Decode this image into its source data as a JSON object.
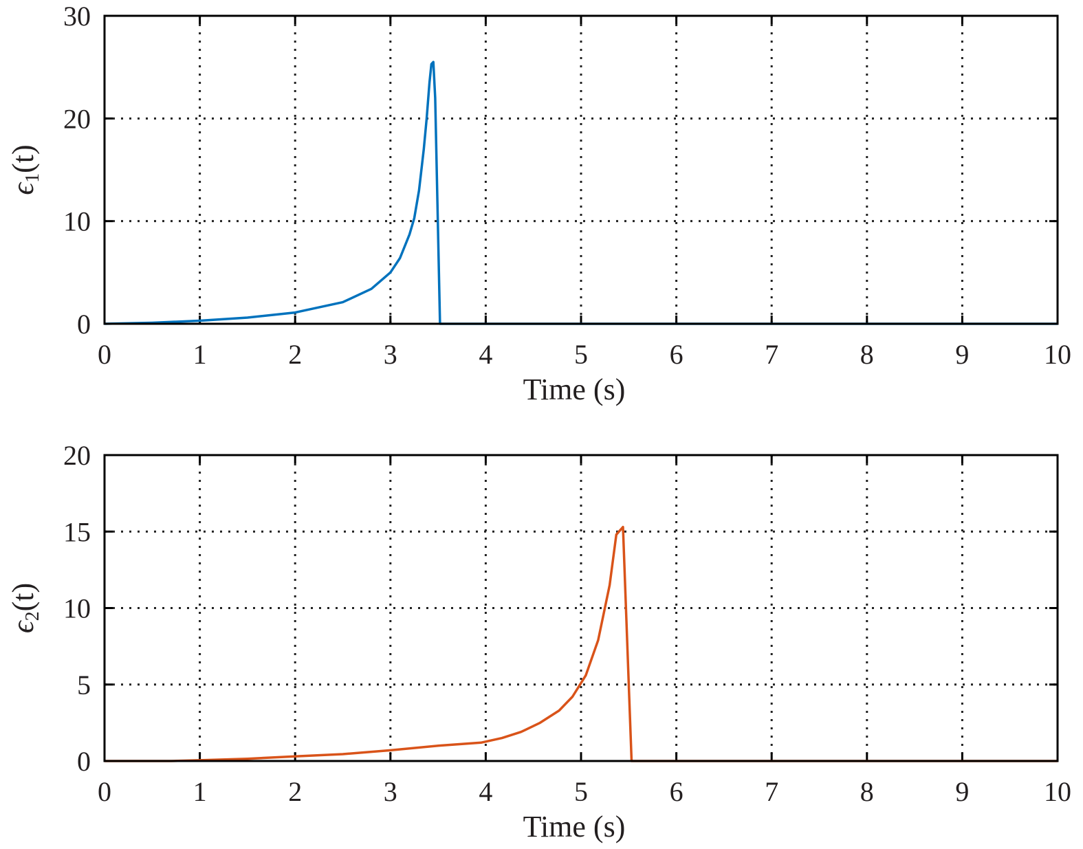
{
  "chart_data": [
    {
      "type": "line",
      "title": "",
      "xlabel": "Time (s)",
      "ylabel": "ε1(t)",
      "ylabel_base": "ϵ",
      "ylabel_sub": "1",
      "ylabel_arg": "(t)",
      "xlim": [
        0,
        10
      ],
      "ylim": [
        0,
        30
      ],
      "xticks": [
        "0",
        "1",
        "2",
        "3",
        "4",
        "5",
        "6",
        "7",
        "8",
        "9",
        "10"
      ],
      "yticks": [
        "0",
        "10",
        "20",
        "30"
      ],
      "grid": true,
      "color": "#0072BD",
      "series": [
        {
          "name": "ε1",
          "x": [
            0,
            0.5,
            1,
            1.5,
            2,
            2.5,
            2.8,
            3.0,
            3.1,
            3.2,
            3.25,
            3.3,
            3.35,
            3.38,
            3.41,
            3.43,
            3.45,
            3.47,
            3.52,
            4,
            10
          ],
          "y": [
            0,
            0.1,
            0.3,
            0.6,
            1.1,
            2.1,
            3.4,
            5.0,
            6.4,
            8.7,
            10.3,
            13,
            17,
            20,
            23.5,
            25.3,
            25.5,
            22,
            0,
            0,
            0
          ]
        }
      ]
    },
    {
      "type": "line",
      "title": "",
      "xlabel": "Time (s)",
      "ylabel": "ε2(t)",
      "ylabel_base": "ϵ",
      "ylabel_sub": "2",
      "ylabel_arg": "(t)",
      "xlim": [
        0,
        10
      ],
      "ylim": [
        0,
        20
      ],
      "xticks": [
        "0",
        "1",
        "2",
        "3",
        "4",
        "5",
        "6",
        "7",
        "8",
        "9",
        "10"
      ],
      "yticks": [
        "0",
        "5",
        "10",
        "15",
        "20"
      ],
      "grid": true,
      "color": "#D95319",
      "series": [
        {
          "name": "ε2",
          "x": [
            0,
            0.7,
            1,
            1.5,
            2,
            2.5,
            3,
            3.5,
            3.95,
            4.17,
            4.37,
            4.57,
            4.77,
            4.91,
            5.05,
            5.18,
            5.3,
            5.37,
            5.44,
            5.53,
            6,
            10
          ],
          "y": [
            0,
            0,
            0.05,
            0.15,
            0.3,
            0.45,
            0.7,
            1.0,
            1.2,
            1.5,
            1.9,
            2.5,
            3.3,
            4.2,
            5.6,
            7.9,
            11.5,
            14.8,
            15.3,
            0,
            0,
            0
          ]
        }
      ]
    }
  ]
}
